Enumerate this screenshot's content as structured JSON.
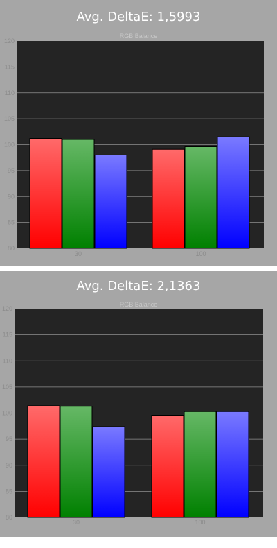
{
  "colors": {
    "panel_bg": "#a6a6a6",
    "plot_bg": "#242424",
    "red": "#ff0000",
    "green": "#008000",
    "blue": "#0000ff"
  },
  "chart_data": [
    {
      "type": "bar",
      "title": "Avg. DeltaE: 1,5993",
      "subtitle": "RGB Balance",
      "categories": [
        "30",
        "100"
      ],
      "series": [
        {
          "color": "red",
          "values": [
            101.2,
            99.1
          ]
        },
        {
          "color": "green",
          "values": [
            101.0,
            99.6
          ]
        },
        {
          "color": "blue",
          "values": [
            98.0,
            101.5
          ]
        }
      ],
      "ylim": [
        80,
        120
      ],
      "yticks": [
        80,
        85,
        90,
        95,
        100,
        105,
        110,
        115,
        120
      ],
      "grid": true
    },
    {
      "type": "bar",
      "title": "Avg. DeltaE: 2,1363",
      "subtitle": "RGB Balance",
      "categories": [
        "30",
        "100"
      ],
      "series": [
        {
          "color": "red",
          "values": [
            101.4,
            99.6
          ]
        },
        {
          "color": "green",
          "values": [
            101.3,
            100.3
          ]
        },
        {
          "color": "blue",
          "values": [
            97.4,
            100.3
          ]
        }
      ],
      "ylim": [
        80,
        120
      ],
      "yticks": [
        80,
        85,
        90,
        95,
        100,
        105,
        110,
        115,
        120
      ],
      "grid": true
    }
  ]
}
